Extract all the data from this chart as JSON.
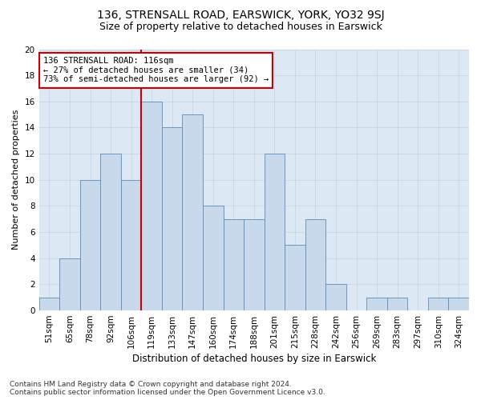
{
  "title1": "136, STRENSALL ROAD, EARSWICK, YORK, YO32 9SJ",
  "title2": "Size of property relative to detached houses in Earswick",
  "xlabel": "Distribution of detached houses by size in Earswick",
  "ylabel": "Number of detached properties",
  "categories": [
    "51sqm",
    "65sqm",
    "78sqm",
    "92sqm",
    "106sqm",
    "119sqm",
    "133sqm",
    "147sqm",
    "160sqm",
    "174sqm",
    "188sqm",
    "201sqm",
    "215sqm",
    "228sqm",
    "242sqm",
    "256sqm",
    "269sqm",
    "283sqm",
    "297sqm",
    "310sqm",
    "324sqm"
  ],
  "values": [
    1,
    4,
    10,
    12,
    10,
    16,
    14,
    15,
    8,
    7,
    7,
    12,
    5,
    7,
    2,
    0,
    1,
    1,
    0,
    1,
    1
  ],
  "bar_color": "#c9d9ec",
  "bar_edge_color": "#5b8db8",
  "vline_color": "#cc0000",
  "annotation_text": "136 STRENSALL ROAD: 116sqm\n← 27% of detached houses are smaller (34)\n73% of semi-detached houses are larger (92) →",
  "annotation_box_color": "white",
  "annotation_box_edge": "#cc0000",
  "ylim": [
    0,
    20
  ],
  "yticks": [
    0,
    2,
    4,
    6,
    8,
    10,
    12,
    14,
    16,
    18,
    20
  ],
  "grid_color": "#c8d4e3",
  "bg_color": "#dce9f5",
  "footnote": "Contains HM Land Registry data © Crown copyright and database right 2024.\nContains public sector information licensed under the Open Government Licence v3.0.",
  "title1_fontsize": 10,
  "title2_fontsize": 9,
  "xlabel_fontsize": 8.5,
  "ylabel_fontsize": 8,
  "tick_fontsize": 7.5,
  "annot_fontsize": 7.5,
  "footnote_fontsize": 6.5
}
